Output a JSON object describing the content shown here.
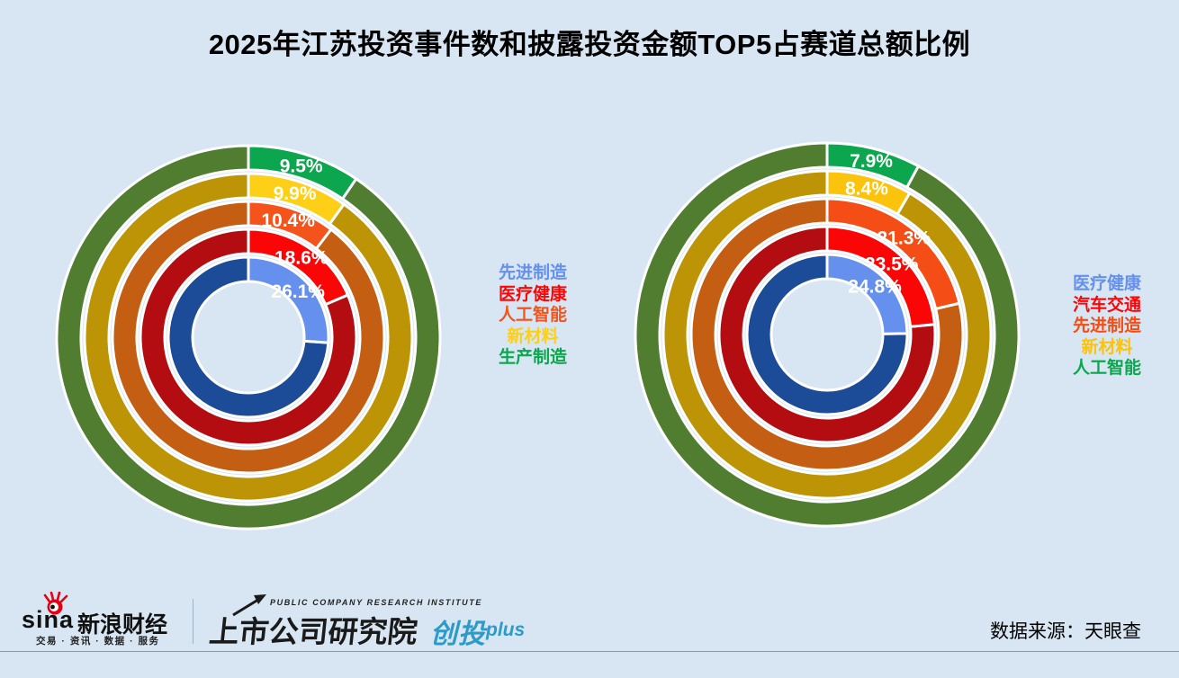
{
  "page": {
    "title": "2025年江苏投资事件数和披露投资金额TOP5占赛道总额比例",
    "background": "#D7E6F2"
  },
  "chart_data": [
    {
      "type": "pie",
      "subtype": "concentric_donut_rings",
      "series_name": "投资事件数TOP5占赛道总额比例",
      "unit": "percent",
      "segment_start": "12-oclock-clockwise",
      "legend_position": "right",
      "rings_outer_to_inner": [
        {
          "label": "生产制造",
          "value_pct": 9.5,
          "color_top5": "#0CA64E",
          "color_rest": "#517D31"
        },
        {
          "label": "新材料",
          "value_pct": 9.9,
          "color_top5": "#FDCF16",
          "color_rest": "#BC9405"
        },
        {
          "label": "人工智能",
          "value_pct": 10.4,
          "color_top5": "#F4531B",
          "color_rest": "#C45E13"
        },
        {
          "label": "医疗健康",
          "value_pct": 18.6,
          "color_top5": "#FB0606",
          "color_rest": "#B30D11"
        },
        {
          "label": "先进制造",
          "value_pct": 26.1,
          "color_top5": "#6690EE",
          "color_rest": "#1C4B97"
        }
      ],
      "legend_top_to_bottom": [
        "先进制造",
        "医疗健康",
        "人工智能",
        "新材料",
        "生产制造"
      ]
    },
    {
      "type": "pie",
      "subtype": "concentric_donut_rings",
      "series_name": "披露投资金额TOP5占赛道总额比例",
      "unit": "percent",
      "segment_start": "12-oclock-clockwise",
      "legend_position": "right",
      "rings_outer_to_inner": [
        {
          "label": "人工智能",
          "value_pct": 7.9,
          "color_top5": "#0CA64E",
          "color_rest": "#517D31"
        },
        {
          "label": "新材料",
          "value_pct": 8.4,
          "color_top5": "#FBC30B",
          "color_rest": "#BC9405"
        },
        {
          "label": "先进制造",
          "value_pct": 21.3,
          "color_top5": "#F44D15",
          "color_rest": "#C45E13"
        },
        {
          "label": "汽车交通",
          "value_pct": 23.5,
          "color_top5": "#FB0606",
          "color_rest": "#B30D11"
        },
        {
          "label": "医疗健康",
          "value_pct": 24.8,
          "color_top5": "#6690EE",
          "color_rest": "#1C4B97"
        }
      ],
      "legend_top_to_bottom": [
        "医疗健康",
        "汽车交通",
        "先进制造",
        "新材料",
        "人工智能"
      ]
    }
  ],
  "footer": {
    "sina_logo_text": "sina",
    "sina_brand": "新浪财经",
    "sina_tagline": "交易 · 资讯 · 数据 · 服务",
    "institute_en": "PUBLIC COMPANY RESEARCH INSTITUTE",
    "institute_cn": "上市公司研究院",
    "product_cn": "创投",
    "product_suffix": "plus",
    "product_color": "#2D9AC8",
    "datasource": "数据来源：天眼查"
  }
}
